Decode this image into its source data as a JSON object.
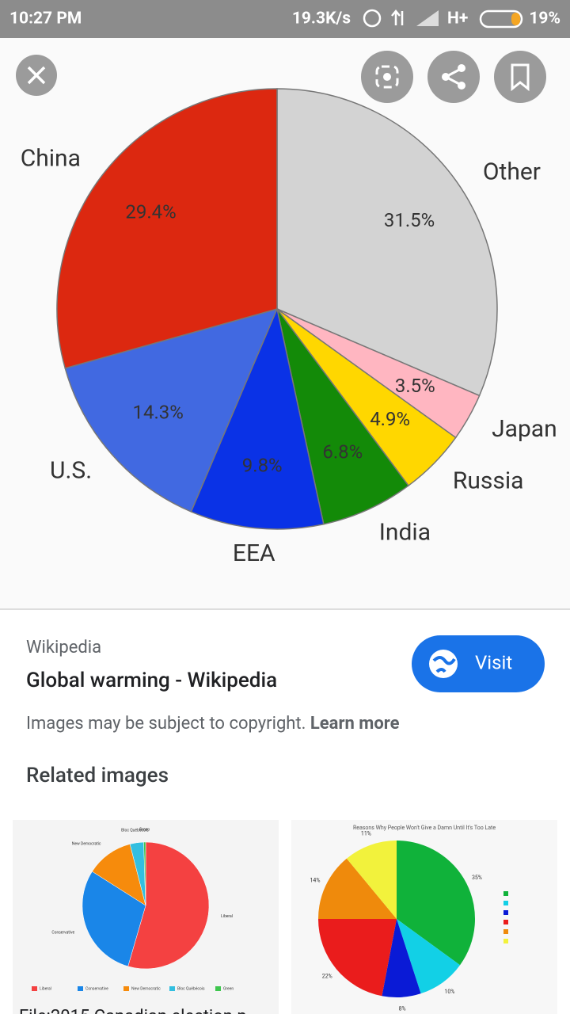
{
  "status_bar": {
    "time": "10:27 PM",
    "speed": "19.3K/s",
    "network": "H+",
    "battery": "19%"
  },
  "chart_data": [
    {
      "type": "pie",
      "categories": [
        "Other",
        "Japan",
        "Russia",
        "India",
        "EEA",
        "U.S.",
        "China"
      ],
      "values": [
        31.5,
        3.5,
        4.9,
        6.8,
        9.8,
        14.3,
        29.4
      ],
      "value_labels": [
        "31.5%",
        "3.5%",
        "4.9%",
        "6.8%",
        "9.8%",
        "14.3%",
        "29.4%"
      ],
      "colors": [
        "#d3d3d3",
        "#ffb6c1",
        "#ffd700",
        "#138a08",
        "#0a32e6",
        "#4169e1",
        "#dc2810"
      ]
    },
    {
      "type": "pie",
      "categories": [
        "Liberal",
        "Conservative",
        "New Democratic",
        "Bloc Québécois",
        "Green"
      ],
      "values": [
        54.5,
        29.5,
        12,
        3.5,
        0.5
      ],
      "colors": [
        "#f44141",
        "#1a86e8",
        "#f68b0c",
        "#33bfe0",
        "#3ec64e"
      ]
    },
    {
      "type": "pie",
      "title": "Reasons Why People Won't Give a Damn Until It's Too Late",
      "categories": [
        null,
        null,
        null,
        null,
        null,
        null
      ],
      "values": [
        35,
        10,
        8,
        22,
        14,
        11
      ],
      "value_labels": [
        "35%",
        "10%",
        "8%",
        "22%",
        "14%",
        "11%"
      ],
      "colors": [
        "#10b23a",
        "#12d0e6",
        "#0a1ad6",
        "#ea1c1c",
        "#ef8a0c",
        "#f2f23c"
      ]
    }
  ],
  "source": {
    "site": "Wikipedia",
    "title": "Global warming - Wikipedia",
    "button": "Visit",
    "notice": "Images may be subject to copyright.",
    "notice_link": "Learn more"
  },
  "related": {
    "heading": "Related images",
    "captions": [
      "File:2015 Canadian election p"
    ]
  }
}
